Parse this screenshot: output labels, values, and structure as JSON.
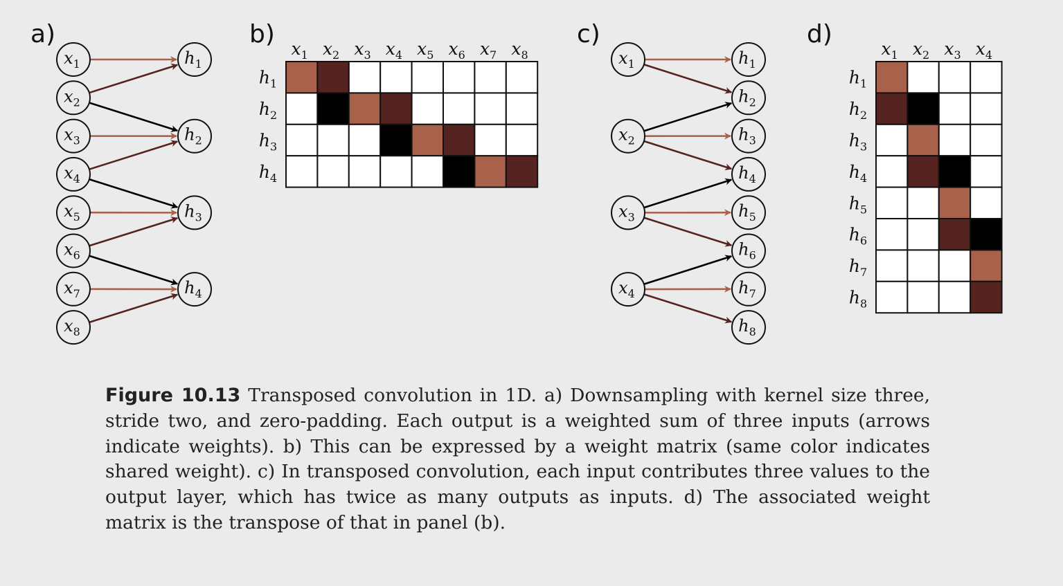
{
  "colors": {
    "weight_1": "#a8614a",
    "weight_2": "#552420",
    "weight_3": "#000000",
    "empty": "#ffffff",
    "background": "#ebebeb"
  },
  "panel_a": {
    "label": "a)",
    "inputs": [
      "x1",
      "x2",
      "x3",
      "x4",
      "x5",
      "x6",
      "x7",
      "x8"
    ],
    "outputs": [
      "h1",
      "h2",
      "h3",
      "h4"
    ],
    "edges": [
      {
        "from": "x1",
        "to": "h1",
        "weight": 1
      },
      {
        "from": "x2",
        "to": "h1",
        "weight": 2
      },
      {
        "from": "x2",
        "to": "h2",
        "weight": 3
      },
      {
        "from": "x3",
        "to": "h2",
        "weight": 1
      },
      {
        "from": "x4",
        "to": "h2",
        "weight": 2
      },
      {
        "from": "x4",
        "to": "h3",
        "weight": 3
      },
      {
        "from": "x5",
        "to": "h3",
        "weight": 1
      },
      {
        "from": "x6",
        "to": "h3",
        "weight": 2
      },
      {
        "from": "x6",
        "to": "h4",
        "weight": 3
      },
      {
        "from": "x7",
        "to": "h4",
        "weight": 1
      },
      {
        "from": "x8",
        "to": "h4",
        "weight": 2
      }
    ]
  },
  "panel_b": {
    "label": "b)",
    "columns": [
      "x1",
      "x2",
      "x3",
      "x4",
      "x5",
      "x6",
      "x7",
      "x8"
    ],
    "rows": [
      "h1",
      "h2",
      "h3",
      "h4"
    ],
    "matrix": [
      [
        1,
        2,
        0,
        0,
        0,
        0,
        0,
        0
      ],
      [
        0,
        3,
        1,
        2,
        0,
        0,
        0,
        0
      ],
      [
        0,
        0,
        0,
        3,
        1,
        2,
        0,
        0
      ],
      [
        0,
        0,
        0,
        0,
        0,
        3,
        1,
        2
      ]
    ]
  },
  "panel_c": {
    "label": "c)",
    "inputs": [
      "x1",
      "x2",
      "x3",
      "x4"
    ],
    "outputs": [
      "h1",
      "h2",
      "h3",
      "h4",
      "h5",
      "h6",
      "h7",
      "h8"
    ],
    "edges": [
      {
        "from": "x1",
        "to": "h1",
        "weight": 1
      },
      {
        "from": "x1",
        "to": "h2",
        "weight": 2
      },
      {
        "from": "x2",
        "to": "h2",
        "weight": 3
      },
      {
        "from": "x2",
        "to": "h3",
        "weight": 1
      },
      {
        "from": "x2",
        "to": "h4",
        "weight": 2
      },
      {
        "from": "x3",
        "to": "h4",
        "weight": 3
      },
      {
        "from": "x3",
        "to": "h5",
        "weight": 1
      },
      {
        "from": "x3",
        "to": "h6",
        "weight": 2
      },
      {
        "from": "x4",
        "to": "h6",
        "weight": 3
      },
      {
        "from": "x4",
        "to": "h7",
        "weight": 1
      },
      {
        "from": "x4",
        "to": "h8",
        "weight": 2
      }
    ]
  },
  "panel_d": {
    "label": "d)",
    "columns": [
      "x1",
      "x2",
      "x3",
      "x4"
    ],
    "rows": [
      "h1",
      "h2",
      "h3",
      "h4",
      "h5",
      "h6",
      "h7",
      "h8"
    ],
    "matrix": [
      [
        1,
        0,
        0,
        0
      ],
      [
        2,
        3,
        0,
        0
      ],
      [
        0,
        1,
        0,
        0
      ],
      [
        0,
        2,
        3,
        0
      ],
      [
        0,
        0,
        1,
        0
      ],
      [
        0,
        0,
        2,
        3
      ],
      [
        0,
        0,
        0,
        1
      ],
      [
        0,
        0,
        0,
        2
      ]
    ]
  },
  "caption": {
    "label": "Figure 10.13",
    "text": " Transposed convolution in 1D. a) Downsampling with kernel size three, stride two, and zero-padding.  Each output is a weighted sum of three inputs (arrows indicate weights).  b) This can be expressed by a weight matrix (same color indicates shared weight).  c) In transposed convolution, each input contributes three values to the output layer, which has twice as many outputs as inputs.  d) The associated weight matrix is the transpose of that in panel (b)."
  }
}
